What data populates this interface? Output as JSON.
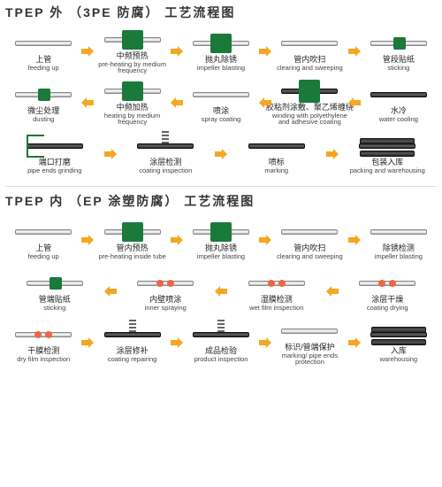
{
  "colors": {
    "accent": "#1a7a3a",
    "arrow": "#f5a623",
    "text": "#222222"
  },
  "sec1": {
    "title": "TPEP 外 （3PE 防腐） 工艺流程图",
    "rows": [
      [
        {
          "cn": "上管",
          "en": "feeding up",
          "t": "pipe"
        },
        {
          "cn": "中频预热",
          "en": "pre-heating by medium frequency",
          "t": "box"
        },
        {
          "cn": "抛丸除锈",
          "en": "impeller blasting",
          "t": "box"
        },
        {
          "cn": "管内吹扫",
          "en": "clearing and sweeping",
          "t": "pipe"
        },
        {
          "cn": "管段贴纸",
          "en": "sticking",
          "t": "greendot"
        }
      ],
      [
        {
          "cn": "水冷",
          "en": "water cooling",
          "t": "dark"
        },
        {
          "cn": "胶粘剂涂敷、聚乙烯缠绕",
          "en": "winding with polyethylene and adhesive coating",
          "t": "boxdark"
        },
        {
          "cn": "喷涂",
          "en": "spray coating",
          "t": "pipe"
        },
        {
          "cn": "中频加热",
          "en": "heating by medium frequency",
          "t": "box"
        },
        {
          "cn": "微尘处理",
          "en": "dusting",
          "t": "greendot"
        }
      ],
      [
        {
          "cn": "端口打磨",
          "en": "pipe ends grinding",
          "t": "frame"
        },
        {
          "cn": "涂层检测",
          "en": "coating inspection",
          "t": "spring"
        },
        {
          "cn": "喷标",
          "en": "marking",
          "t": "dark"
        },
        {
          "cn": "包装入库",
          "en": "packing and warehousing",
          "t": "stack"
        }
      ]
    ]
  },
  "sec2": {
    "title": "TPEP 内 （EP 涂塑防腐） 工艺流程图",
    "rows": [
      [
        {
          "cn": "上管",
          "en": "feeding up",
          "t": "pipe"
        },
        {
          "cn": "管内预热",
          "en": "pre-heating inside tube",
          "t": "box"
        },
        {
          "cn": "抛丸除锈",
          "en": "impeller blasting",
          "t": "box"
        },
        {
          "cn": "管内吹扫",
          "en": "clearing and sweeping",
          "t": "pipe"
        },
        {
          "cn": "除锈检测",
          "en": "impeller blasting",
          "t": "pipe"
        }
      ],
      [
        {
          "cn": "涂层干燥",
          "en": "coating drying",
          "t": "reddot"
        },
        {
          "cn": "湿膜检测",
          "en": "wet film inspection",
          "t": "reddot"
        },
        {
          "cn": "内壁喷涂",
          "en": "inner spraying",
          "t": "reddot"
        },
        {
          "cn": "管端贴纸",
          "en": "sticking",
          "t": "greendot"
        }
      ],
      [
        {
          "cn": "干膜检测",
          "en": "dry film inspection",
          "t": "reddot"
        },
        {
          "cn": "涂层修补",
          "en": "coating repairing",
          "t": "spring"
        },
        {
          "cn": "成品检验",
          "en": "product inspection",
          "t": "spring"
        },
        {
          "cn": "标识/管端保护",
          "en": "marking/ pipe ends protection",
          "t": "pipe"
        },
        {
          "cn": "入库",
          "en": "warehousing",
          "t": "stack"
        }
      ]
    ]
  }
}
